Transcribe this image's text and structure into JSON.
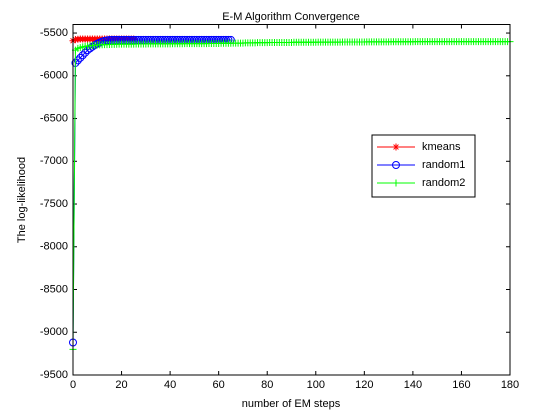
{
  "chart_data": {
    "type": "line",
    "title": "E-M Algorithm Convergence",
    "xlabel": "number of EM steps",
    "ylabel": "The log-likelihood",
    "x": [
      0,
      1,
      2,
      3,
      4,
      5,
      6,
      7,
      8,
      9,
      10,
      11,
      12,
      13,
      14,
      15,
      16,
      17,
      18,
      19,
      20,
      21,
      22,
      23,
      24,
      25,
      26,
      27,
      28,
      29,
      30,
      31,
      32,
      33,
      34,
      35,
      36,
      37,
      38,
      39,
      40,
      41,
      42,
      43,
      44,
      45,
      46,
      47,
      48,
      49,
      50,
      51,
      52,
      53,
      54,
      55,
      56,
      57,
      58,
      59,
      60,
      61,
      62,
      63,
      64,
      65,
      66,
      67,
      68,
      69,
      70,
      71,
      72,
      73,
      74,
      75,
      76,
      77,
      78,
      79,
      80,
      81,
      82,
      83,
      84,
      85,
      86,
      87,
      88,
      89,
      90,
      91,
      92,
      93,
      94,
      95,
      96,
      97,
      98,
      99,
      100,
      101,
      102,
      103,
      104,
      105,
      106,
      107,
      108,
      109,
      110,
      111,
      112,
      113,
      114,
      115,
      116,
      117,
      118,
      119,
      120,
      121,
      122,
      123,
      124,
      125,
      126,
      127,
      128,
      129,
      130,
      131,
      132,
      133,
      134,
      135,
      136,
      137,
      138,
      139,
      140,
      141,
      142,
      143,
      144,
      145,
      146,
      147,
      148,
      149,
      150,
      151,
      152,
      153,
      154,
      155,
      156,
      157,
      158,
      159,
      160,
      161,
      162,
      163,
      164,
      165,
      166,
      167,
      168,
      169,
      170,
      171,
      172,
      173,
      174,
      175,
      176,
      177,
      178,
      179,
      180
    ],
    "series": [
      {
        "name": "kmeans",
        "color": "#ff0000",
        "marker": "star",
        "values": [
          -5590,
          -5575,
          -5572,
          -5570,
          -5570,
          -5570,
          -5570,
          -5570,
          -5570,
          -5570,
          -5570,
          -5570,
          -5570,
          -5570,
          -5570,
          -5570,
          -5570,
          -5570,
          -5570,
          -5570,
          -5570,
          -5570,
          -5570,
          -5570,
          -5570,
          -5570,
          null,
          null,
          null,
          null,
          null,
          null,
          null,
          null,
          null,
          null,
          null,
          null,
          null,
          null,
          null,
          null,
          null,
          null,
          null,
          null,
          null,
          null,
          null,
          null,
          null,
          null,
          null,
          null,
          null,
          null,
          null,
          null,
          null,
          null,
          null,
          null,
          null,
          null,
          null,
          null,
          null,
          null,
          null,
          null,
          null,
          null,
          null,
          null,
          null,
          null,
          null,
          null,
          null,
          null,
          null,
          null,
          null,
          null,
          null,
          null,
          null,
          null,
          null,
          null,
          null,
          null,
          null,
          null,
          null,
          null,
          null,
          null,
          null,
          null,
          null,
          null,
          null,
          null,
          null,
          null,
          null,
          null,
          null,
          null,
          null,
          null,
          null,
          null,
          null,
          null,
          null,
          null,
          null,
          null,
          null,
          null,
          null,
          null,
          null,
          null,
          null,
          null,
          null,
          null,
          null,
          null,
          null,
          null,
          null,
          null,
          null,
          null,
          null,
          null,
          null,
          null,
          null,
          null,
          null,
          null,
          null,
          null,
          null,
          null,
          null,
          null,
          null,
          null,
          null,
          null,
          null,
          null,
          null,
          null,
          null,
          null,
          null,
          null,
          null,
          null,
          null,
          null,
          null,
          null,
          null,
          null,
          null,
          null,
          null,
          null,
          null,
          null,
          null,
          null,
          null
        ]
      },
      {
        "name": "random1",
        "color": "#0000ff",
        "marker": "circle",
        "values": [
          -9120,
          -5850,
          -5820,
          -5790,
          -5760,
          -5730,
          -5700,
          -5680,
          -5660,
          -5640,
          -5625,
          -5612,
          -5600,
          -5592,
          -5586,
          -5582,
          -5580,
          -5580,
          -5580,
          -5580,
          -5580,
          -5580,
          -5580,
          -5580,
          -5580,
          -5580,
          -5580,
          -5580,
          -5580,
          -5580,
          -5580,
          -5580,
          -5580,
          -5580,
          -5580,
          -5580,
          -5580,
          -5580,
          -5580,
          -5580,
          -5580,
          -5580,
          -5580,
          -5580,
          -5580,
          -5580,
          -5580,
          -5580,
          -5580,
          -5580,
          -5580,
          -5580,
          -5580,
          -5580,
          -5580,
          -5580,
          -5580,
          -5580,
          -5580,
          -5580,
          -5580,
          -5580,
          -5580,
          -5580,
          -5580,
          -5580,
          null,
          null,
          null,
          null,
          null,
          null,
          null,
          null,
          null,
          null,
          null,
          null,
          null,
          null,
          null,
          null,
          null,
          null,
          null,
          null,
          null,
          null,
          null,
          null,
          null,
          null,
          null,
          null,
          null,
          null,
          null,
          null,
          null,
          null,
          null,
          null,
          null,
          null,
          null,
          null,
          null,
          null,
          null,
          null,
          null,
          null,
          null,
          null,
          null,
          null,
          null,
          null,
          null,
          null,
          null,
          null,
          null,
          null,
          null,
          null,
          null,
          null,
          null,
          null,
          null,
          null,
          null,
          null,
          null,
          null,
          null,
          null,
          null,
          null,
          null,
          null,
          null,
          null,
          null,
          null,
          null,
          null,
          null,
          null,
          null,
          null,
          null,
          null,
          null,
          null,
          null,
          null,
          null,
          null,
          null,
          null,
          null,
          null,
          null,
          null,
          null,
          null,
          null,
          null,
          null,
          null,
          null,
          null,
          null,
          null,
          null,
          null,
          null,
          null,
          null
        ]
      },
      {
        "name": "random2",
        "color": "#00ff00",
        "marker": "plus",
        "values": [
          -9200,
          -5700,
          -5680,
          -5670,
          -5662,
          -5656,
          -5652,
          -5648,
          -5645,
          -5642,
          -5640,
          -5638,
          -5637,
          -5636,
          -5635,
          -5634,
          -5633,
          -5632,
          -5631,
          -5630,
          -5630,
          -5629,
          -5629,
          -5629,
          -5629,
          -5629,
          -5628,
          -5628,
          -5628,
          -5628,
          -5628,
          -5627,
          -5627,
          -5627,
          -5627,
          -5627,
          -5626,
          -5626,
          -5626,
          -5626,
          -5626,
          -5625,
          -5625,
          -5625,
          -5625,
          -5625,
          -5624,
          -5624,
          -5624,
          -5624,
          -5624,
          -5623,
          -5623,
          -5623,
          -5623,
          -5623,
          -5622,
          -5622,
          -5622,
          -5622,
          -5622,
          -5620,
          -5620,
          -5620,
          -5620,
          -5620,
          -5618,
          -5618,
          -5618,
          -5618,
          -5618,
          -5615,
          -5615,
          -5615,
          -5615,
          -5615,
          -5612,
          -5612,
          -5612,
          -5612,
          -5612,
          -5610,
          -5610,
          -5610,
          -5610,
          -5610,
          -5610,
          -5610,
          -5610,
          -5610,
          -5610,
          -5608,
          -5608,
          -5608,
          -5608,
          -5608,
          -5608,
          -5608,
          -5608,
          -5608,
          -5608,
          -5606,
          -5606,
          -5606,
          -5606,
          -5606,
          -5606,
          -5606,
          -5606,
          -5606,
          -5606,
          -5604,
          -5604,
          -5604,
          -5604,
          -5604,
          -5604,
          -5604,
          -5604,
          -5604,
          -5604,
          -5603,
          -5603,
          -5603,
          -5603,
          -5603,
          -5603,
          -5603,
          -5603,
          -5603,
          -5603,
          -5602,
          -5602,
          -5602,
          -5602,
          -5602,
          -5602,
          -5602,
          -5602,
          -5602,
          -5602,
          -5601,
          -5601,
          -5601,
          -5601,
          -5601,
          -5601,
          -5601,
          -5601,
          -5601,
          -5601,
          -5601,
          -5601,
          -5601,
          -5601,
          -5601,
          -5601,
          -5601,
          -5601,
          -5601,
          -5601,
          -5600,
          -5600,
          -5600,
          -5600,
          -5600,
          -5600,
          -5600,
          -5600,
          -5600,
          -5600,
          -5600,
          -5600,
          -5600,
          -5600,
          -5600,
          -5600,
          -5600,
          -5600,
          -5600,
          -5600
        ]
      }
    ],
    "xlim": [
      0,
      180
    ],
    "xticks": [
      0,
      20,
      40,
      60,
      80,
      100,
      120,
      140,
      160,
      180
    ],
    "ylim": [
      -9500,
      -5400
    ],
    "yticks": [
      -9500,
      -9000,
      -8500,
      -8000,
      -7500,
      -7000,
      -6500,
      -6000,
      -5500
    ],
    "legend": "east",
    "grid": false
  }
}
